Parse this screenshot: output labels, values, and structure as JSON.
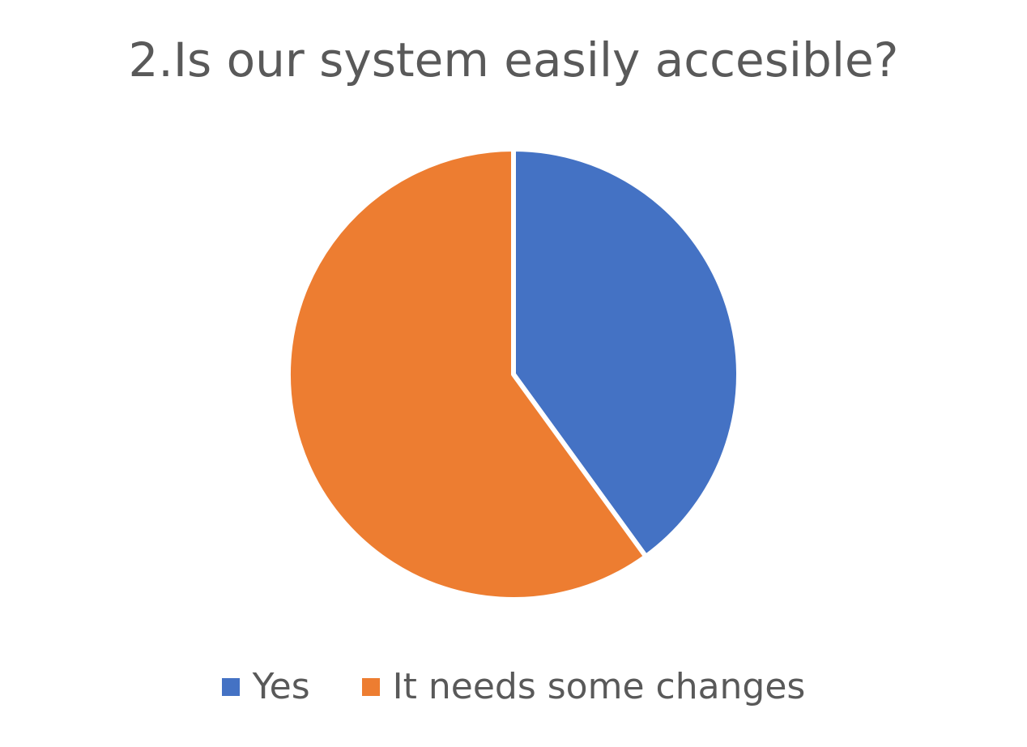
{
  "chart_data": {
    "type": "pie",
    "title": "2.Is our system easily accesible?",
    "categories": [
      "Yes",
      "It needs some changes"
    ],
    "values": [
      40,
      60
    ],
    "colors": [
      "#4472C4",
      "#ED7D31"
    ],
    "legend": {
      "position": "bottom",
      "entries": [
        "Yes",
        "It needs some changes"
      ]
    },
    "start_angle_deg": 0,
    "direction": "clockwise"
  }
}
